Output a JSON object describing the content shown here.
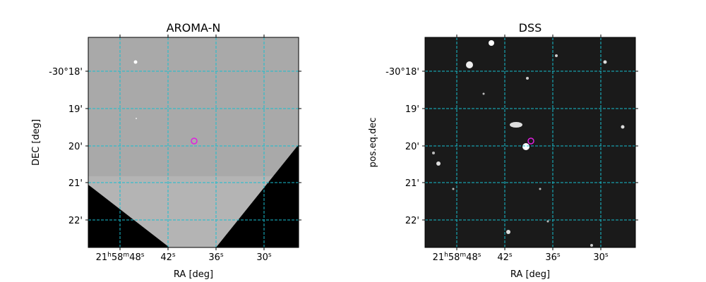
{
  "panels": [
    {
      "title": "AROMA-N",
      "xlabel": "RA [deg]",
      "ylabel": "DEC [deg]",
      "xticks": [
        "21h58m48s",
        "42s",
        "36s",
        "30s"
      ],
      "yticks": [
        "-30°18'",
        "19'",
        "20'",
        "21'",
        "22'"
      ]
    },
    {
      "title": "DSS",
      "xlabel": "RA [deg]",
      "ylabel": "pos.eq.dec",
      "xticks": [
        "21h58m48s",
        "42s",
        "36s",
        "30s"
      ],
      "yticks": [
        "-30°18'",
        "19'",
        "20'",
        "21'",
        "22'"
      ]
    }
  ]
}
